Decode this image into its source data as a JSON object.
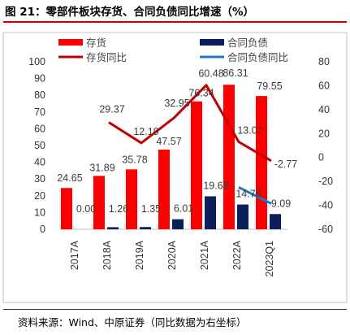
{
  "figure": {
    "title": "图 21：零部件板块存货、合同负债同比增速（%）",
    "source": "资料来源：Wind、中原证券（同比数据为右坐标）"
  },
  "chart_data": {
    "type": "bar",
    "categories": [
      "2017A",
      "2018A",
      "2019A",
      "2020A",
      "2021A",
      "2022A",
      "2023Q1"
    ],
    "series": [
      {
        "name": "存货",
        "type": "bar",
        "axis": "left",
        "color": "#ff0000",
        "values": [
          24.65,
          31.89,
          35.78,
          47.57,
          76.34,
          86.31,
          79.55
        ]
      },
      {
        "name": "合同负债",
        "type": "bar",
        "axis": "left",
        "color": "#0b1f5c",
        "values": [
          0.0,
          1.26,
          1.35,
          6.01,
          19.68,
          14.78,
          9.09
        ]
      },
      {
        "name": "存货同比",
        "type": "line",
        "axis": "right",
        "color": "#c00000",
        "values": [
          null,
          29.37,
          12.19,
          32.95,
          60.48,
          13.07,
          -2.77
        ]
      },
      {
        "name": "合同负债同比",
        "type": "line",
        "axis": "right",
        "color": "#1f77c8",
        "values": [
          null,
          null,
          null,
          null,
          null,
          -24.9,
          -38.5
        ]
      }
    ],
    "y_left": {
      "ylim": [
        0,
        100
      ],
      "ticks": [
        0,
        10,
        20,
        30,
        40,
        50,
        60,
        70,
        80,
        90,
        100
      ]
    },
    "y_right": {
      "ylim": [
        -60,
        80
      ],
      "ticks": [
        -60,
        -40,
        -20,
        0,
        20,
        40,
        60,
        80
      ]
    },
    "data_labels": {
      "存货": [
        "24.65",
        "31.89",
        "35.78",
        "47.57",
        "76.34",
        "86.31",
        "79.55"
      ],
      "合同负债": [
        "0.00",
        "1.26",
        "1.35",
        "6.01",
        "19.68",
        "14.78",
        "9.09"
      ],
      "存货同比": [
        "",
        "29.37",
        "12.19",
        "32.95",
        "60.48",
        "13.07",
        "-2.77"
      ]
    },
    "legend": "top",
    "grid": false
  }
}
